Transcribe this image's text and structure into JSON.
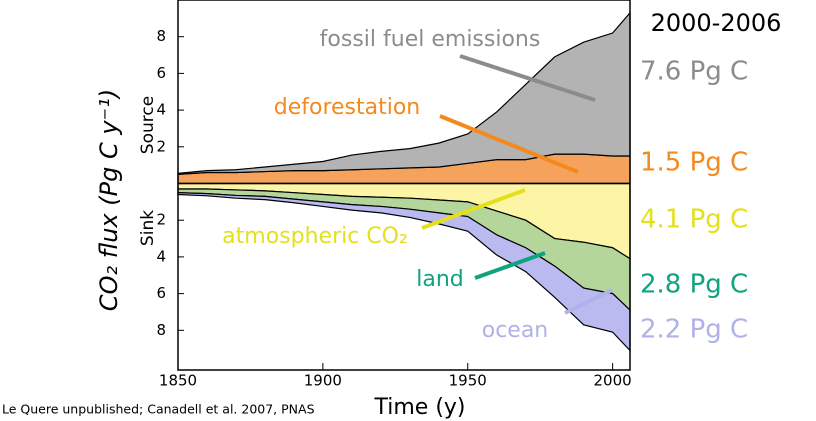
{
  "chart_data": {
    "type": "stacked_area",
    "period_label": "2000-2006",
    "ylabel": "CO₂ flux (Pg C y⁻¹)",
    "source_label": "Source",
    "sink_label": "Sink",
    "xlabel": "Time (y)",
    "credit": "Le Quere unpublished; Canadell et al. 2007, PNAS",
    "x": [
      1850,
      1860,
      1870,
      1880,
      1890,
      1900,
      1910,
      1920,
      1930,
      1940,
      1950,
      1960,
      1970,
      1980,
      1990,
      2000,
      2006
    ],
    "xlim": [
      1850,
      2006
    ],
    "xticks": [
      1850,
      1900,
      1950,
      2000
    ],
    "ylim": [
      -10,
      10
    ],
    "yticks": [
      {
        "value": -8,
        "label": "8"
      },
      {
        "value": -6,
        "label": "6"
      },
      {
        "value": -4,
        "label": "4"
      },
      {
        "value": -2,
        "label": "2"
      },
      2,
      4,
      6,
      8
    ],
    "series": [
      {
        "name": "deforestation",
        "color": "#f5a35c",
        "label_color": "#f5891f",
        "mean_label": "1.5 Pg C",
        "values": [
          0.5,
          0.6,
          0.6,
          0.65,
          0.7,
          0.7,
          0.75,
          0.8,
          0.85,
          0.9,
          1.1,
          1.3,
          1.3,
          1.6,
          1.6,
          1.5,
          1.5
        ]
      },
      {
        "name": "fossil fuel emissions",
        "color": "#b3b3b3",
        "label_color": "#8c8c8c",
        "mean_label": "7.6 Pg C",
        "values": [
          0.05,
          0.1,
          0.15,
          0.25,
          0.35,
          0.5,
          0.8,
          0.95,
          1.05,
          1.3,
          1.6,
          2.6,
          4.1,
          5.3,
          6.1,
          6.7,
          7.8
        ]
      },
      {
        "name": "atmospheric CO₂",
        "color": "#fdf5a6",
        "label_color": "#e4e01c",
        "mean_label": "4.1 Pg C",
        "values": [
          -0.3,
          -0.3,
          -0.35,
          -0.4,
          -0.5,
          -0.6,
          -0.7,
          -0.75,
          -0.8,
          -0.9,
          -1.0,
          -1.5,
          -2.0,
          -3.0,
          -3.2,
          -3.5,
          -4.1
        ]
      },
      {
        "name": "land",
        "color": "#b5d69a",
        "label_color": "#10a37f",
        "mean_label": "2.8 Pg C",
        "values": [
          -0.2,
          -0.25,
          -0.3,
          -0.3,
          -0.35,
          -0.4,
          -0.45,
          -0.5,
          -0.6,
          -0.7,
          -0.8,
          -1.3,
          -1.5,
          -1.5,
          -2.5,
          -2.5,
          -2.8
        ]
      },
      {
        "name": "ocean",
        "color": "#bab9f0",
        "label_color": "#aeb2e8",
        "mean_label": "2.2 Pg C",
        "values": [
          -0.1,
          -0.12,
          -0.15,
          -0.18,
          -0.2,
          -0.25,
          -0.3,
          -0.35,
          -0.45,
          -0.6,
          -0.8,
          -1.1,
          -1.3,
          -1.7,
          -2.0,
          -2.1,
          -2.2
        ]
      }
    ]
  }
}
